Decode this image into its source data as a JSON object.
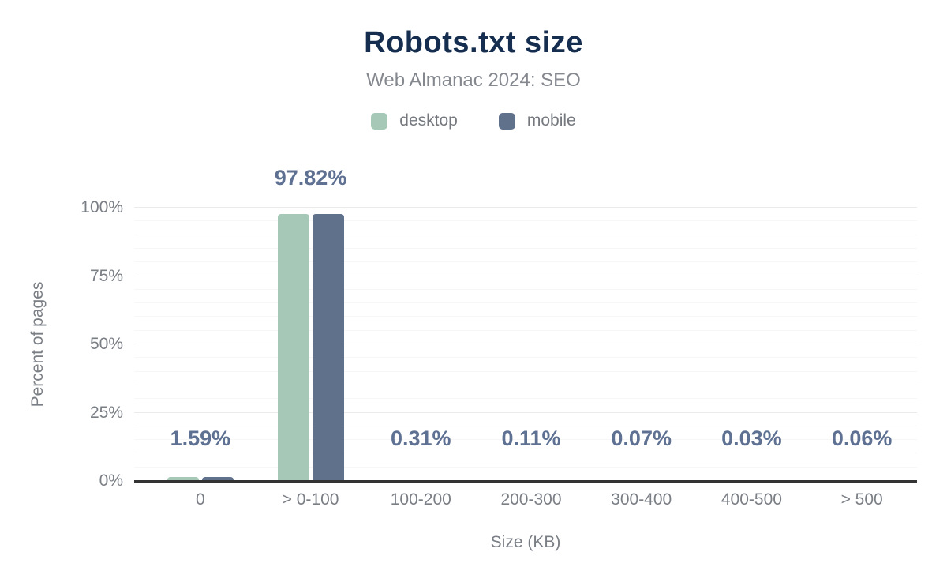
{
  "header": {
    "title": "Robots.txt size",
    "subtitle": "Web Almanac 2024: SEO"
  },
  "legend": [
    {
      "label": "desktop",
      "color": "#a6c8b7"
    },
    {
      "label": "mobile",
      "color": "#5f718b"
    }
  ],
  "chart_data": {
    "type": "bar",
    "title": "Robots.txt size",
    "subtitle": "Web Almanac 2024: SEO",
    "categories": [
      "0",
      "> 0-100",
      "100-200",
      "200-300",
      "300-400",
      "400-500",
      "> 500"
    ],
    "series": [
      {
        "name": "desktop",
        "color": "#a6c8b7",
        "values": [
          1.59,
          97.82,
          0.31,
          0.11,
          0.07,
          0.03,
          0.06
        ]
      },
      {
        "name": "mobile",
        "color": "#5f718b",
        "values": [
          1.59,
          97.82,
          0.31,
          0.11,
          0.07,
          0.03,
          0.06
        ]
      }
    ],
    "bar_labels": [
      "1.59%",
      "97.82%",
      "0.31%",
      "0.11%",
      "0.07%",
      "0.03%",
      "0.06%"
    ],
    "xlabel": "Size (KB)",
    "ylabel": "Percent of pages",
    "ylim": [
      0,
      100
    ],
    "yticks": [
      {
        "value": 0,
        "label": "0%"
      },
      {
        "value": 25,
        "label": "25%"
      },
      {
        "value": 50,
        "label": "50%"
      },
      {
        "value": 75,
        "label": "75%"
      },
      {
        "value": 100,
        "label": "100%"
      }
    ],
    "grid": {
      "minor_step": 5,
      "major_step": 25
    },
    "legend_position": "top",
    "axis_color": "#333333"
  }
}
